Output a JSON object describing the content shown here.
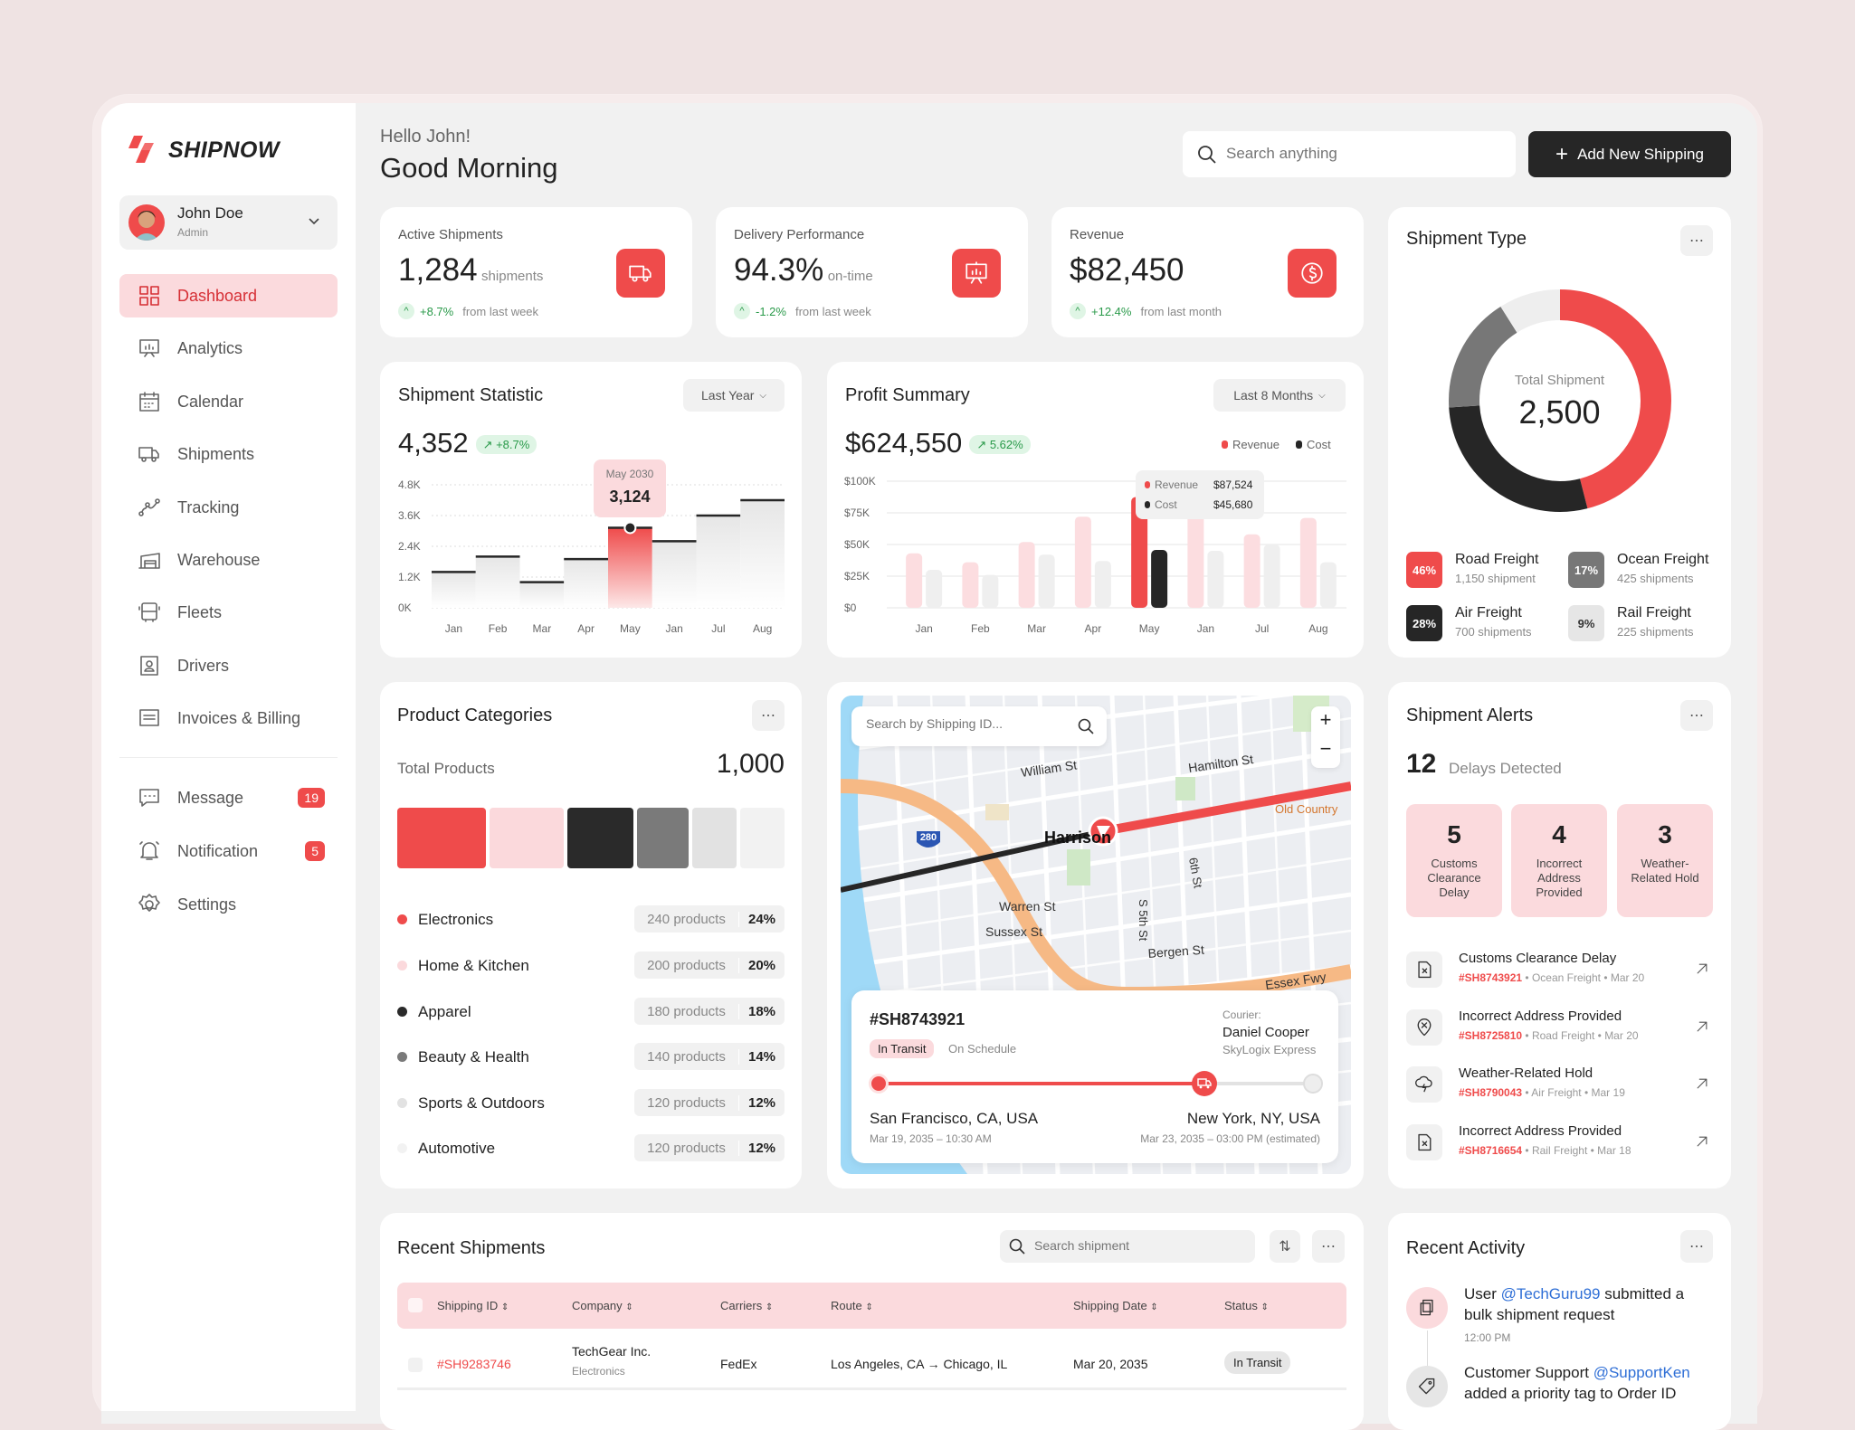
{
  "brand": {
    "name": "SHIPNOW",
    "accent": "#ef4b4b"
  },
  "user": {
    "name": "John Doe",
    "role": "Admin"
  },
  "sidebar": {
    "items": [
      {
        "label": "Dashboard",
        "icon": "dashboard-icon",
        "active": true
      },
      {
        "label": "Analytics",
        "icon": "analytics-icon"
      },
      {
        "label": "Calendar",
        "icon": "calendar-icon"
      },
      {
        "label": "Shipments",
        "icon": "truck-icon"
      },
      {
        "label": "Tracking",
        "icon": "tracking-icon"
      },
      {
        "label": "Warehouse",
        "icon": "warehouse-icon"
      },
      {
        "label": "Fleets",
        "icon": "bus-icon"
      },
      {
        "label": "Drivers",
        "icon": "driver-icon"
      },
      {
        "label": "Invoices & Billing",
        "icon": "invoice-icon"
      }
    ],
    "secondary": [
      {
        "label": "Message",
        "icon": "message-icon",
        "badge": "19"
      },
      {
        "label": "Notification",
        "icon": "bell-icon",
        "badge": "5"
      },
      {
        "label": "Settings",
        "icon": "gear-icon"
      }
    ]
  },
  "header": {
    "greeting": "Hello John!",
    "title": "Good Morning",
    "search_placeholder": "Search anything",
    "add_button": "Add New Shipping"
  },
  "kpis": [
    {
      "label": "Active Shipments",
      "value": "1,284",
      "unit": "shipments",
      "change": "+8.7%",
      "period": "from last week",
      "icon": "truck-icon"
    },
    {
      "label": "Delivery Performance",
      "value": "94.3%",
      "unit": "on-time",
      "change": "-1.2%",
      "period": "from last week",
      "icon": "presentation-icon"
    },
    {
      "label": "Revenue",
      "value": "$82,450",
      "unit": "",
      "change": "+12.4%",
      "period": "from last month",
      "icon": "dollar-icon"
    }
  ],
  "shipment_type": {
    "title": "Shipment Type",
    "center_label": "Total Shipment",
    "total": "2,500",
    "segments": [
      {
        "label": "Road Freight",
        "percent": "46%",
        "count": "1,150 shipment",
        "color": "#ef4b4b",
        "text_color": "#fff"
      },
      {
        "label": "Ocean Freight",
        "percent": "17%",
        "count": "425 shipments",
        "color": "#777777",
        "text_color": "#fff"
      },
      {
        "label": "Air Freight",
        "percent": "28%",
        "count": "700 shipments",
        "color": "#262626",
        "text_color": "#fff"
      },
      {
        "label": "Rail Freight",
        "percent": "9%",
        "count": "225 shipments",
        "color": "#e6e6e6",
        "text_color": "#333"
      }
    ]
  },
  "shipment_statistic": {
    "title": "Shipment Statistic",
    "range": "Last Year",
    "total": "4,352",
    "change": "+8.7%",
    "tooltip": {
      "label": "May 2030",
      "value": "3,124"
    }
  },
  "profit_summary": {
    "title": "Profit Summary",
    "range": "Last 8 Months",
    "total": "$624,550",
    "change": "5.62%",
    "tooltip": {
      "revenue_label": "Revenue",
      "revenue": "$87,524",
      "cost_label": "Cost",
      "cost": "$45,680"
    }
  },
  "chart_data": [
    {
      "type": "bar",
      "style": "step",
      "categories": [
        "Jan",
        "Feb",
        "Mar",
        "Apr",
        "May",
        "Jan",
        "Jul",
        "Aug"
      ],
      "values": [
        1400,
        2000,
        1000,
        1900,
        3124,
        2600,
        3600,
        4200
      ],
      "highlight": "May",
      "yticks": [
        "0K",
        "1.2K",
        "2.4K",
        "3.6K",
        "4.8K"
      ],
      "ylim": [
        0,
        4800
      ],
      "grid": true
    },
    {
      "type": "bar",
      "categories": [
        "Jan",
        "Feb",
        "Mar",
        "Apr",
        "May",
        "Jan",
        "Jul",
        "Aug"
      ],
      "series": [
        {
          "name": "Revenue",
          "color": "#ef4b4b",
          "values": [
            43000,
            36000,
            52000,
            72000,
            87524,
            76000,
            58000,
            71000
          ]
        },
        {
          "name": "Cost",
          "color": "#262626",
          "values": [
            30000,
            26000,
            42000,
            37000,
            45680,
            45000,
            50000,
            36000
          ]
        }
      ],
      "highlight": "May",
      "yticks": [
        "$0",
        "$25K",
        "$50K",
        "$75K",
        "$100K"
      ],
      "ylim": [
        0,
        100000
      ],
      "legend": "top-right",
      "grid": true
    },
    {
      "type": "pie",
      "style": "donut",
      "labels": [
        "Road Freight",
        "Air Freight",
        "Ocean Freight",
        "Rail Freight"
      ],
      "values": [
        46,
        28,
        17,
        9
      ],
      "colors": [
        "#ef4b4b",
        "#262626",
        "#777777",
        "#eeeeee"
      ]
    }
  ],
  "product_categories": {
    "title": "Product Categories",
    "total_label": "Total Products",
    "total": "1,000",
    "items": [
      {
        "name": "Electronics",
        "count": "240 products",
        "percent": "24%",
        "value": 24,
        "color": "#ef4b4b"
      },
      {
        "name": "Home & Kitchen",
        "count": "200 products",
        "percent": "20%",
        "value": 20,
        "color": "#fbd9dc"
      },
      {
        "name": "Apparel",
        "count": "180 products",
        "percent": "18%",
        "value": 18,
        "color": "#2a2a2a"
      },
      {
        "name": "Beauty & Health",
        "count": "140 products",
        "percent": "14%",
        "value": 14,
        "color": "#7a7a7a"
      },
      {
        "name": "Sports & Outdoors",
        "count": "120 products",
        "percent": "12%",
        "value": 12,
        "color": "#e2e2e2"
      },
      {
        "name": "Automotive",
        "count": "120 products",
        "percent": "12%",
        "value": 12,
        "color": "#f2f2f2"
      }
    ]
  },
  "map": {
    "search_placeholder": "Search by Shipping ID...",
    "labels": {
      "william": "William St",
      "hamilton": "Hamilton St",
      "old_country": "Old Country",
      "harrison": "Harrison",
      "sixth": "6th St",
      "warren": "Warren St",
      "sussex": "Sussex St",
      "s5th": "S 5th St",
      "bergen": "Bergen St",
      "essex": "Essex Fwy",
      "i280": "280"
    },
    "shipment": {
      "id": "#SH8743921",
      "status": "In Transit",
      "schedule": "On Schedule",
      "courier_label": "Courier:",
      "courier": "Daniel Cooper",
      "company": "SkyLogix Express",
      "origin": "San Francisco, CA, USA",
      "origin_time": "Mar 19, 2035 – 10:30 AM",
      "destination": "New York, NY, USA",
      "destination_time": "Mar 23, 2035 – 03:00 PM (estimated)",
      "progress": 0.75
    }
  },
  "alerts": {
    "title": "Shipment Alerts",
    "count": "12",
    "count_label": "Delays Detected",
    "summary": [
      {
        "value": "5",
        "label": "Customs Clearance Delay"
      },
      {
        "value": "4",
        "label": "Incorrect Address Provided"
      },
      {
        "value": "3",
        "label": "Weather-Related Hold"
      }
    ],
    "items": [
      {
        "title": "Customs Clearance Delay",
        "id": "#SH8743921",
        "mode": "Ocean Freight",
        "date": "Mar 20",
        "icon": "file-x-icon"
      },
      {
        "title": "Incorrect Address Provided",
        "id": "#SH8725810",
        "mode": "Road Freight",
        "date": "Mar 20",
        "icon": "pin-x-icon"
      },
      {
        "title": "Weather-Related Hold",
        "id": "#SH8790043",
        "mode": "Air Freight",
        "date": "Mar 19",
        "icon": "storm-icon"
      },
      {
        "title": "Incorrect Address Provided",
        "id": "#SH8716654",
        "mode": "Rail Freight",
        "date": "Mar 18",
        "icon": "file-x-icon"
      }
    ]
  },
  "recent_shipments": {
    "title": "Recent Shipments",
    "search_placeholder": "Search shipment",
    "columns": [
      "Shipping ID",
      "Company",
      "Carriers",
      "Route",
      "Shipping Date",
      "Status"
    ],
    "rows": [
      {
        "id": "#SH9283746",
        "company": "TechGear Inc.",
        "category": "Electronics",
        "carrier": "FedEx",
        "route": "Los Angeles, CA → Chicago, IL",
        "date": "Mar 20, 2035",
        "status": "In Transit"
      }
    ]
  },
  "recent_activity": {
    "title": "Recent Activity",
    "items": [
      {
        "prefix": "User ",
        "mention": "@TechGuru99",
        "suffix": " submitted a bulk shipment request",
        "time": "12:00 PM",
        "icon": "copy-icon"
      },
      {
        "prefix": "Customer Support ",
        "mention": "@SupportKen",
        "suffix": " added a priority tag to Order ID",
        "time": "",
        "icon": "tag-icon"
      }
    ]
  }
}
